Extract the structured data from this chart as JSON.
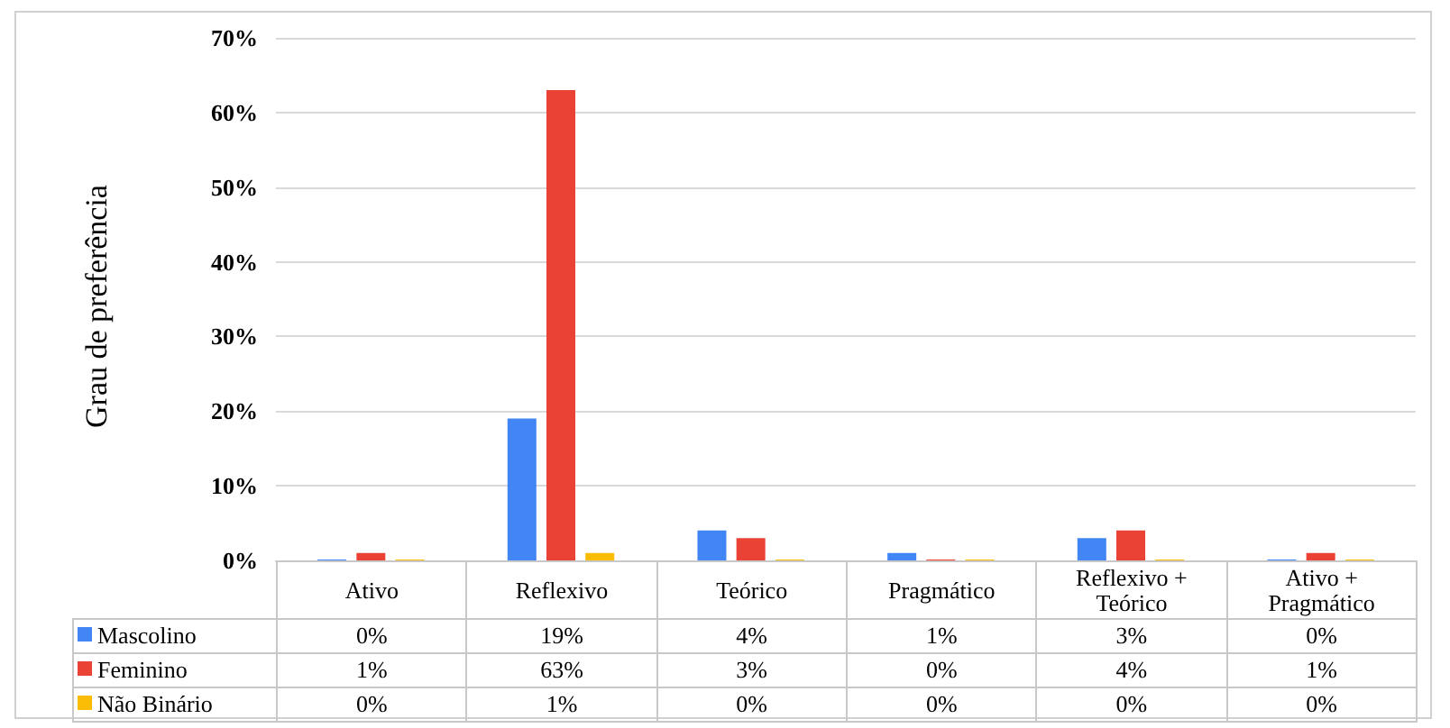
{
  "chart_data": {
    "type": "bar",
    "ylabel": "Grau de preferência",
    "categories": [
      "Ativo",
      "Reflexivo",
      "Teórico",
      "Pragmático",
      "Reflexivo + Teórico",
      "Ativo + Pragmático"
    ],
    "series": [
      {
        "name": "Mascolino",
        "color": "#4285f4",
        "values": [
          0,
          19,
          4,
          1,
          3,
          0
        ],
        "value_labels": [
          "0%",
          "19%",
          "4%",
          "1%",
          "3%",
          "0%"
        ]
      },
      {
        "name": "Feminino",
        "color": "#ea4335",
        "values": [
          1,
          63,
          3,
          0,
          4,
          1
        ],
        "value_labels": [
          "1%",
          "63%",
          "3%",
          "0%",
          "4%",
          "1%"
        ]
      },
      {
        "name": "Não Binário",
        "color": "#fbbc04",
        "values": [
          0,
          1,
          0,
          0,
          0,
          0
        ],
        "value_labels": [
          "0%",
          "1%",
          "0%",
          "0%",
          "0%",
          "0%"
        ]
      }
    ],
    "ylim": [
      0,
      70
    ],
    "yticks": [
      {
        "value": 0,
        "label": "0%"
      },
      {
        "value": 10,
        "label": "10%"
      },
      {
        "value": 20,
        "label": "20%"
      },
      {
        "value": 30,
        "label": "30%"
      },
      {
        "value": 40,
        "label": "40%"
      },
      {
        "value": 50,
        "label": "50%"
      },
      {
        "value": 60,
        "label": "60%"
      },
      {
        "value": 70,
        "label": "70%"
      }
    ],
    "grid": "y",
    "legend": "bottom"
  }
}
